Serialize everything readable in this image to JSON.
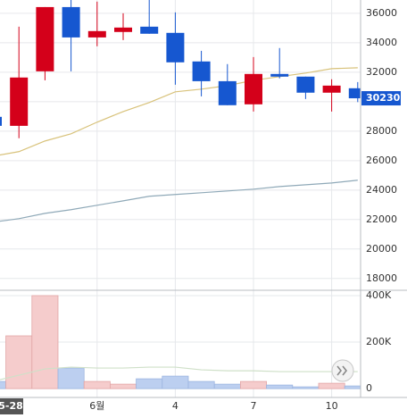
{
  "chart_data": {
    "type": "candlestick",
    "categories": [
      "5-28",
      null,
      null,
      null,
      "6월",
      null,
      null,
      "4",
      null,
      null,
      "7",
      null,
      null,
      "10",
      null
    ],
    "open": [
      28970,
      28360,
      32060,
      36420,
      34360,
      34730,
      35090,
      34670,
      32730,
      31390,
      29820,
      31880,
      31700,
      30610,
      30910
    ],
    "high": [
      29000,
      35090,
      36420,
      36900,
      36790,
      36000,
      36900,
      36060,
      33450,
      32550,
      33030,
      33640,
      31700,
      31520,
      31330
    ],
    "low": [
      28300,
      27520,
      31450,
      32060,
      33760,
      34180,
      34610,
      31150,
      30360,
      29760,
      29330,
      31580,
      30180,
      29330,
      29970
    ],
    "close": [
      28360,
      31640,
      36420,
      34360,
      34790,
      35030,
      34610,
      32670,
      31390,
      29760,
      31880,
      31700,
      30610,
      31090,
      30230
    ],
    "up_color": "#d4001a",
    "down_color": "#1657d0",
    "ylim": [
      17200,
      36900
    ],
    "yticks": [
      18000,
      20000,
      22000,
      24000,
      26000,
      28000,
      30000,
      32000,
      34000,
      36000
    ],
    "grid": true,
    "lines": [
      {
        "color": "#d8c27a",
        "values": [
          26300,
          26610,
          27330,
          27820,
          28610,
          29330,
          29940,
          30670,
          30850,
          31090,
          31450,
          31700,
          31940,
          32240,
          32300
        ]
      },
      {
        "color": "#8fa9b8",
        "values": [
          21820,
          22060,
          22420,
          22670,
          22970,
          23270,
          23580,
          23700,
          23820,
          23940,
          24060,
          24240,
          24360,
          24480,
          24670
        ]
      }
    ],
    "volume": {
      "values": [
        30800,
        227000,
        400000,
        88500,
        30800,
        19200,
        42300,
        53800,
        30800,
        19200,
        30800,
        15400,
        7700,
        23100,
        11500
      ],
      "up_color": "#f5cccc",
      "down_color": "#bccff0",
      "ylim": [
        -38000,
        423000
      ],
      "yticks": [
        {
          "value": 0,
          "label": "0"
        },
        {
          "value": 200000,
          "label": "200K"
        },
        {
          "value": 400000,
          "label": "400K"
        }
      ],
      "lines": [
        {
          "color": "#cfe0c8",
          "values": [
            30800,
            57700,
            84600,
            92300,
            88500,
            88500,
            92300,
            92300,
            80800,
            76900,
            76900,
            73100,
            73100,
            73100,
            73100
          ]
        }
      ]
    }
  }
}
